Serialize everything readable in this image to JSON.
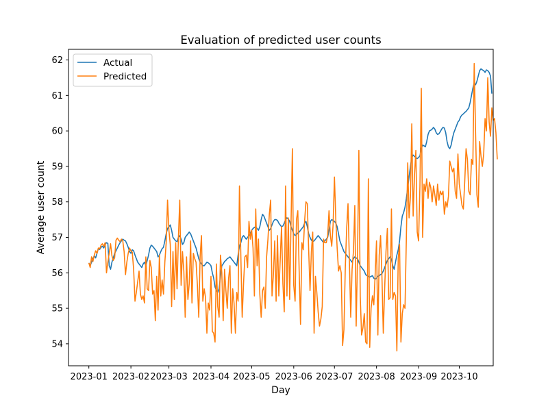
{
  "chart_data": {
    "type": "line",
    "title": "Evaluation of predicted user counts",
    "xlabel": "Day",
    "ylabel": "Average user count",
    "x_start": "2023-01-01",
    "x_ticks": [
      "2023-01",
      "2023-02",
      "2023-03",
      "2023-04",
      "2023-05",
      "2023-06",
      "2023-07",
      "2023-08",
      "2023-09",
      "2023-10"
    ],
    "y_ticks": [
      54,
      55,
      56,
      57,
      58,
      59,
      60,
      61,
      62
    ],
    "ylim": [
      53.38,
      62.3
    ],
    "xlim": [
      "2022-12-17",
      "2023-10-26"
    ],
    "grid": false,
    "legend_position": "top-left",
    "series": [
      {
        "name": "Actual",
        "color": "#1f77b4",
        "values": [
          56.28,
          56.2,
          56.3,
          56.4,
          56.48,
          56.42,
          56.55,
          56.68,
          56.66,
          56.72,
          56.75,
          56.7,
          56.8,
          56.85,
          56.83,
          56.2,
          56.1,
          56.3,
          56.42,
          56.55,
          56.62,
          56.7,
          56.78,
          56.85,
          56.9,
          56.95,
          56.92,
          56.9,
          56.82,
          56.72,
          56.6,
          56.55,
          56.65,
          56.62,
          56.5,
          56.4,
          56.3,
          56.25,
          56.2,
          56.15,
          56.25,
          56.3,
          56.2,
          56.35,
          56.5,
          56.7,
          56.78,
          56.75,
          56.7,
          56.65,
          56.6,
          56.45,
          56.5,
          56.6,
          56.68,
          56.72,
          56.9,
          57.1,
          57.25,
          57.3,
          57.35,
          57.2,
          57.0,
          56.95,
          56.9,
          56.88,
          57.0,
          57.05,
          56.95,
          56.8,
          56.85,
          57.0,
          57.05,
          57.1,
          57.15,
          57.1,
          57.0,
          56.9,
          56.8,
          56.7,
          56.55,
          56.4,
          56.3,
          56.25,
          56.2,
          56.2,
          56.25,
          56.3,
          56.28,
          56.25,
          56.2,
          56.0,
          55.85,
          55.6,
          55.5,
          55.45,
          55.55,
          55.9,
          56.2,
          56.25,
          56.32,
          56.35,
          56.4,
          56.42,
          56.45,
          56.4,
          56.35,
          56.3,
          56.25,
          56.2,
          56.5,
          56.75,
          56.85,
          57.0,
          57.05,
          57.0,
          56.95,
          57.0,
          57.05,
          57.1,
          57.2,
          57.25,
          57.28,
          57.3,
          57.25,
          57.2,
          57.3,
          57.5,
          57.65,
          57.6,
          57.5,
          57.4,
          57.3,
          57.2,
          57.25,
          57.35,
          57.45,
          57.5,
          57.5,
          57.48,
          57.4,
          57.35,
          57.3,
          57.32,
          57.4,
          57.5,
          57.55,
          57.52,
          57.45,
          57.3,
          57.2,
          57.1,
          57.05,
          57.08,
          57.12,
          57.15,
          57.2,
          57.25,
          57.3,
          57.4,
          57.45,
          57.3,
          57.1,
          57.0,
          56.92,
          56.88,
          56.9,
          56.95,
          57.0,
          57.05,
          57.0,
          56.95,
          56.9,
          56.85,
          56.9,
          56.95,
          57.0,
          57.2,
          57.45,
          57.5,
          57.48,
          57.45,
          57.4,
          57.3,
          57.1,
          56.9,
          56.8,
          56.7,
          56.6,
          56.55,
          56.5,
          56.45,
          56.4,
          56.35,
          56.3,
          56.4,
          56.45,
          56.42,
          56.4,
          56.3,
          56.2,
          56.15,
          56.1,
          56.05,
          55.95,
          55.92,
          55.9,
          55.88,
          55.9,
          55.92,
          55.85,
          55.82,
          55.85,
          55.9,
          55.92,
          55.95,
          55.98,
          56.05,
          56.15,
          56.25,
          56.35,
          56.4,
          56.45,
          56.38,
          56.2,
          56.1,
          56.3,
          56.5,
          56.65,
          56.9,
          57.3,
          57.6,
          57.7,
          57.85,
          58.1,
          58.4,
          58.7,
          59.0,
          59.25,
          59.32,
          59.28,
          59.25,
          59.22,
          59.25,
          59.3,
          59.5,
          59.6,
          59.58,
          59.55,
          59.7,
          59.9,
          60.0,
          60.02,
          60.05,
          60.1,
          60.05,
          59.95,
          59.9,
          59.92,
          59.98,
          60.05,
          60.1,
          60.08,
          59.95,
          59.7,
          59.55,
          59.5,
          59.6,
          59.8,
          59.95,
          60.05,
          60.15,
          60.25,
          60.3,
          60.4,
          60.45,
          60.48,
          60.52,
          60.55,
          60.6,
          60.65,
          60.8,
          61.0,
          61.2,
          61.35,
          61.3,
          61.4,
          61.55,
          61.7,
          61.75,
          61.72,
          61.7,
          61.65,
          61.72,
          61.7,
          61.65,
          61.55,
          61.05
        ]
      },
      {
        "name": "Predicted",
        "color": "#ff7f0e",
        "values": [
          56.28,
          56.15,
          56.45,
          56.32,
          56.5,
          56.62,
          56.55,
          56.7,
          56.68,
          56.78,
          56.82,
          56.75,
          56.85,
          56.0,
          56.3,
          56.55,
          56.82,
          56.48,
          56.35,
          56.42,
          56.92,
          56.98,
          56.92,
          56.88,
          56.95,
          56.9,
          56.6,
          55.95,
          56.3,
          56.55,
          56.7,
          56.62,
          56.58,
          56.1,
          55.2,
          55.45,
          55.75,
          56.05,
          55.4,
          55.25,
          55.35,
          55.15,
          56.45,
          55.55,
          55.5,
          56.35,
          56.15,
          55.4,
          55.5,
          54.65,
          55.9,
          54.95,
          56.5,
          55.35,
          55.8,
          55.4,
          56.3,
          56.85,
          58.05,
          57.2,
          56.8,
          55.05,
          56.6,
          55.25,
          56.85,
          55.55,
          57.0,
          58.05,
          55.65,
          56.6,
          56.05,
          54.75,
          56.45,
          55.25,
          55.7,
          56.9,
          55.15,
          56.55,
          56.4,
          56.3,
          55.65,
          54.75,
          56.45,
          57.05,
          55.2,
          55.55,
          55.3,
          54.3,
          55.15,
          54.95,
          55.9,
          54.35,
          54.3,
          54.05,
          56.25,
          55.05,
          54.75,
          56.5,
          56.0,
          54.65,
          56.1,
          55.5,
          55.0,
          55.85,
          56.2,
          54.3,
          55.55,
          55.15,
          54.3,
          55.45,
          55.2,
          58.45,
          56.5,
          54.75,
          55.7,
          56.45,
          56.5,
          56.15,
          57.45,
          56.95,
          57.2,
          56.7,
          55.35,
          57.8,
          56.2,
          56.95,
          55.4,
          54.75,
          55.5,
          55.6,
          55.0,
          56.45,
          56.95,
          57.65,
          58.05,
          55.35,
          55.95,
          56.9,
          55.2,
          57.05,
          55.35,
          56.35,
          57.3,
          55.7,
          54.9,
          58.45,
          55.35,
          57.55,
          55.25,
          57.4,
          59.5,
          55.65,
          55.2,
          57.5,
          57.75,
          56.05,
          54.55,
          56.85,
          56.65,
          57.45,
          58.0,
          57.95,
          56.65,
          55.5,
          56.6,
          57.15,
          54.3,
          55.9,
          55.45,
          54.9,
          54.5,
          54.7,
          55.05,
          56.95,
          56.85,
          56.85,
          57.05,
          57.75,
          57.05,
          56.75,
          57.35,
          58.7,
          57.5,
          56.7,
          56.05,
          56.2,
          56.0,
          53.95,
          54.4,
          56.15,
          57.25,
          57.95,
          56.35,
          54.75,
          56.1,
          56.6,
          57.9,
          54.5,
          56.45,
          59.45,
          55.35,
          54.25,
          54.45,
          54.85,
          54.05,
          54.0,
          58.65,
          53.9,
          55.0,
          55.35,
          55.1,
          55.95,
          56.9,
          54.25,
          56.5,
          57.05,
          55.9,
          54.3,
          55.55,
          56.6,
          57.25,
          55.25,
          55.3,
          57.8,
          55.25,
          55.45,
          55.35,
          53.8,
          56.4,
          56.8,
          54.05,
          54.85,
          55.1,
          55.0,
          57.0,
          59.1,
          57.55,
          58.15,
          60.2,
          57.6,
          58.75,
          59.45,
          57.15,
          56.9,
          58.45,
          61.2,
          57.0,
          58.5,
          58.3,
          58.65,
          58.1,
          58.55,
          58.4,
          58.0,
          58.45,
          58.2,
          57.9,
          58.5,
          58.05,
          58.3,
          58.2,
          58.3,
          57.65,
          58.0,
          57.85,
          58.15,
          59.15,
          59.0,
          58.85,
          58.95,
          58.3,
          58.1,
          59.35,
          58.5,
          58.2,
          57.9,
          57.8,
          58.55,
          59.5,
          59.2,
          58.3,
          58.2,
          59.2,
          59.05,
          61.9,
          60.0,
          58.2,
          57.85,
          59.7,
          59.3,
          59.0,
          59.35,
          60.35,
          60.0,
          61.5,
          60.25,
          59.85,
          60.65,
          60.3,
          60.35,
          59.95,
          59.2
        ]
      }
    ]
  }
}
